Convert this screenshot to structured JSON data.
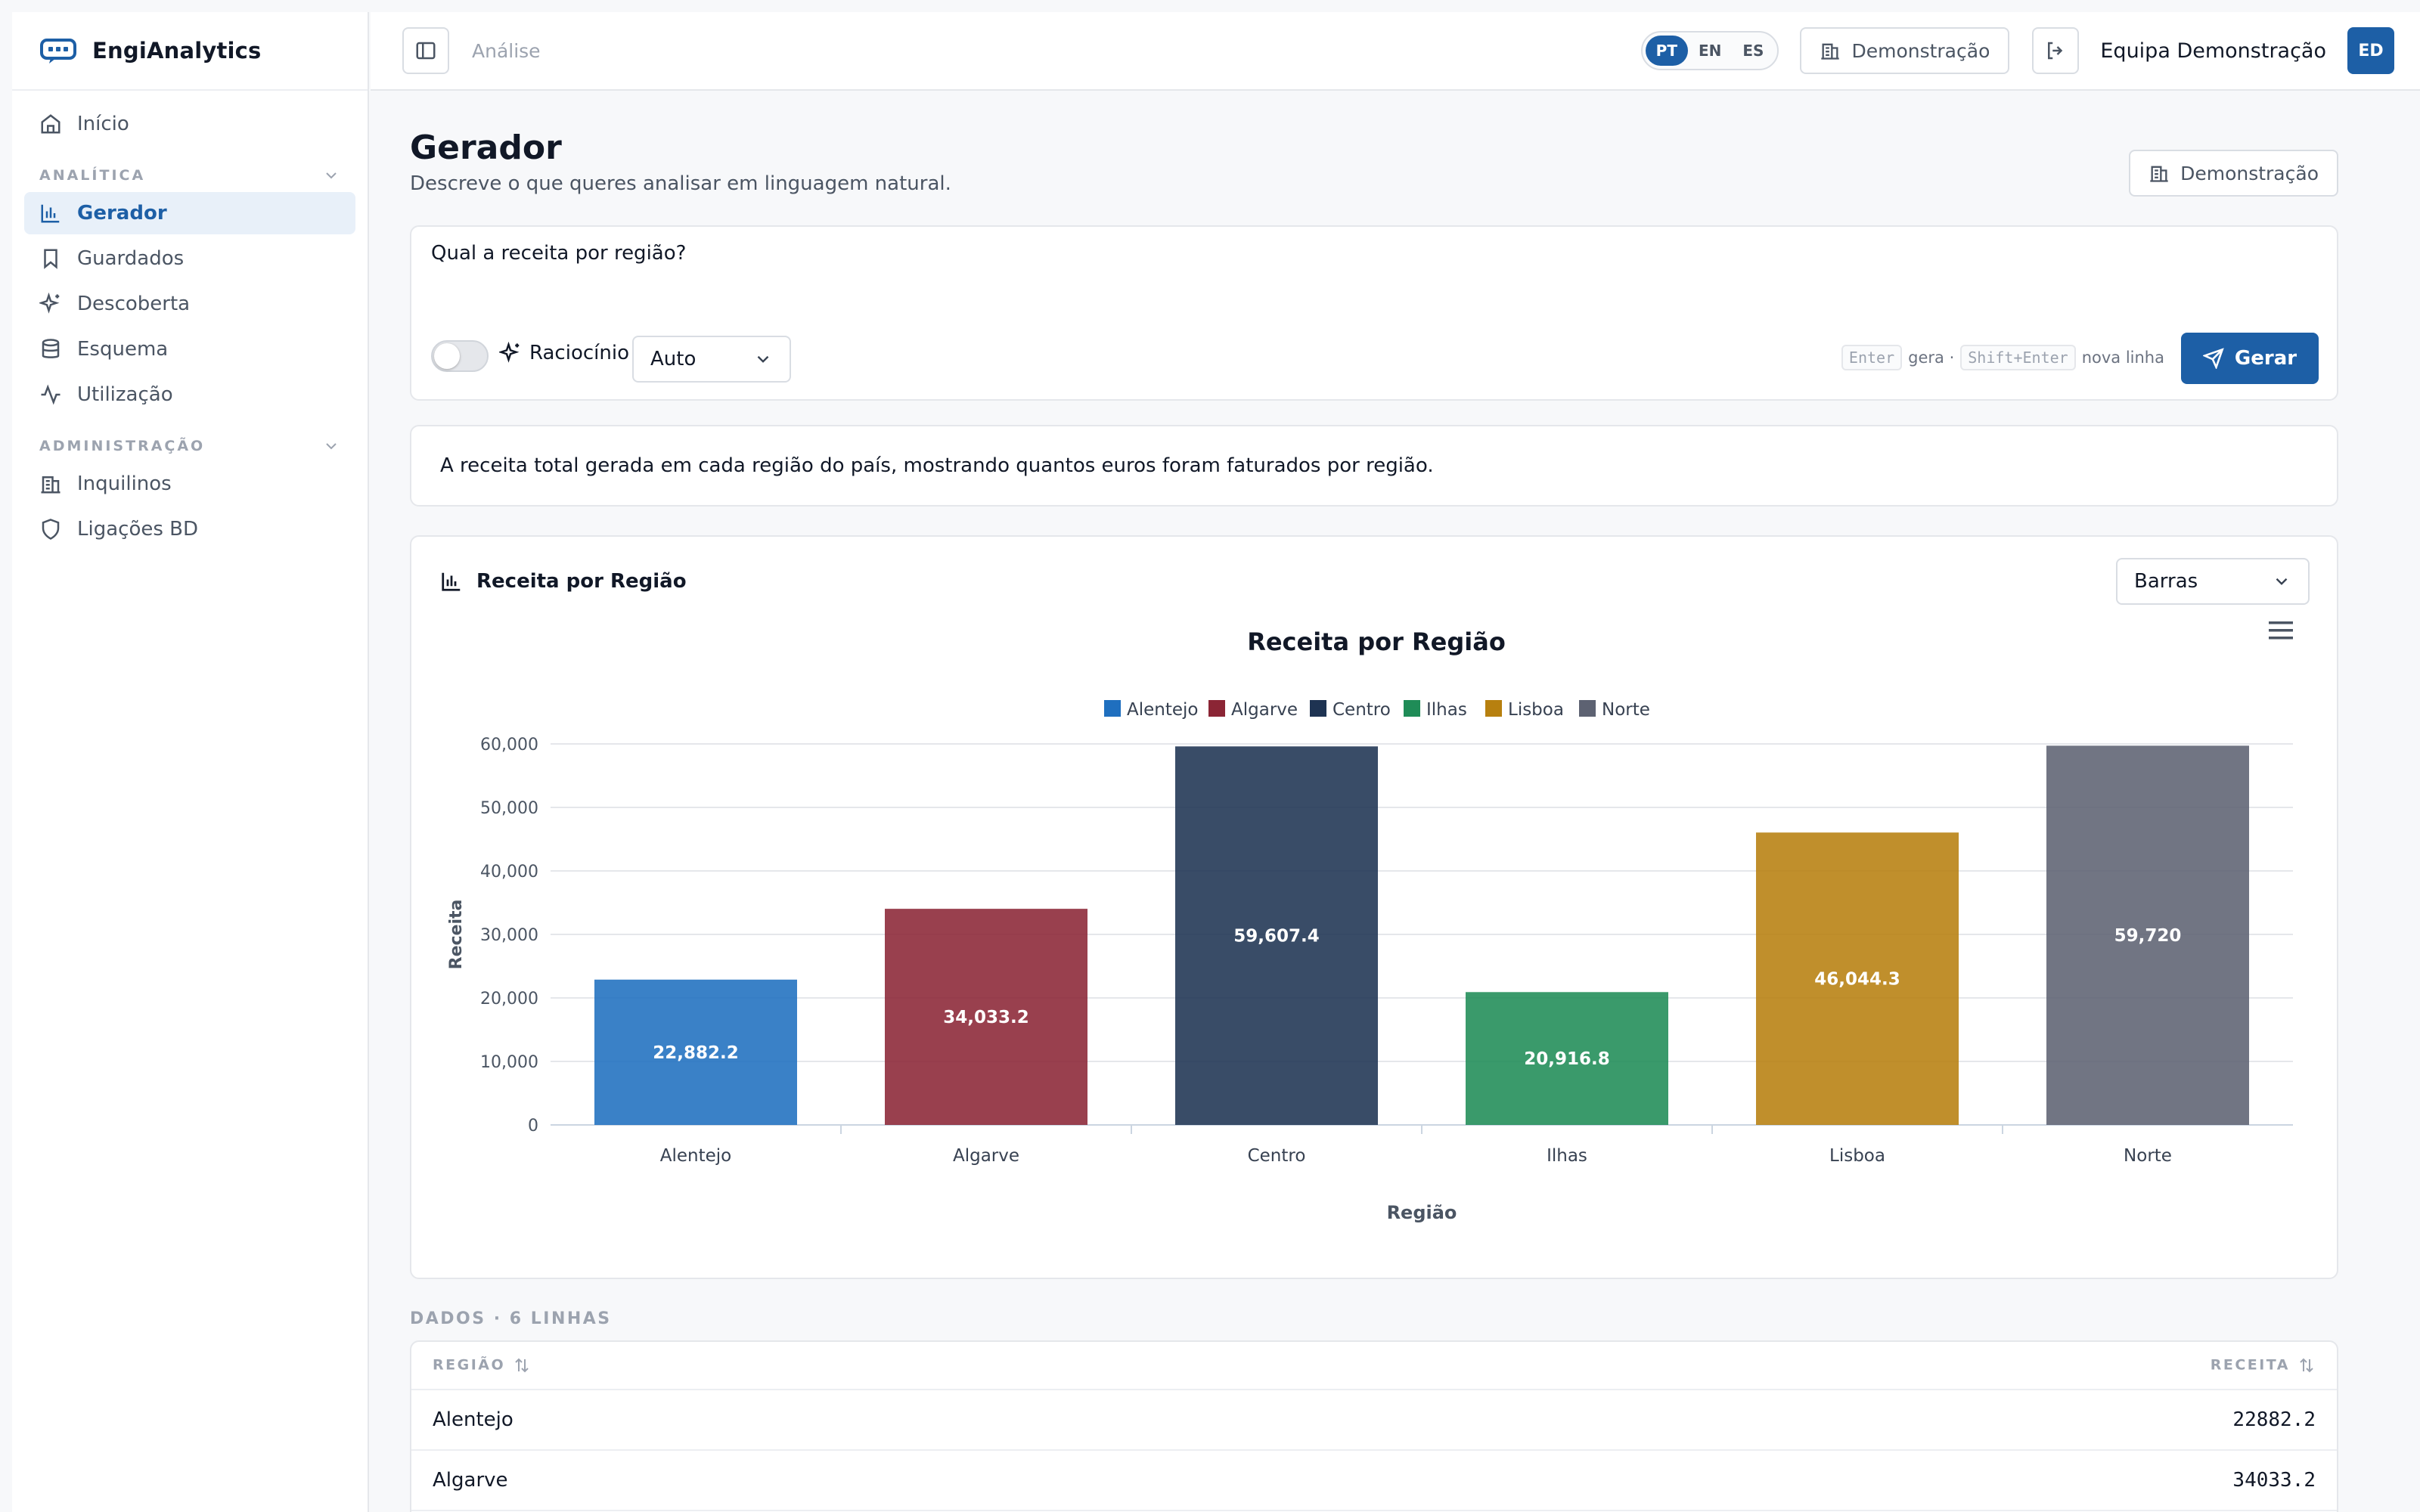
{
  "app": {
    "name": "EngiAnalytics"
  },
  "sidebar": {
    "home": "Início",
    "sections": [
      {
        "label": "ANALÍTICA",
        "items": [
          "Gerador",
          "Guardados",
          "Descoberta",
          "Esquema",
          "Utilização"
        ]
      },
      {
        "label": "ADMINISTRAÇÃO",
        "items": [
          "Inquilinos",
          "Ligações BD"
        ]
      }
    ],
    "active": "Gerador"
  },
  "header": {
    "breadcrumb": "Análise",
    "languages": [
      "PT",
      "EN",
      "ES"
    ],
    "selected_language": "PT",
    "demo_label": "Demonstração",
    "user_name": "Equipa Demonstração",
    "user_initials": "ED"
  },
  "page": {
    "title": "Gerador",
    "subtitle": "Descreve o que queres analisar em linguagem natural.",
    "demo_label": "Demonstração"
  },
  "query": {
    "text": "Qual a receita por região?",
    "reasoning_label": "Raciocínio",
    "reasoning_on": false,
    "model_select": "Auto",
    "hint_key1": "Enter",
    "hint_text1": "gera ·",
    "hint_key2": "Shift+Enter",
    "hint_text2": "nova linha",
    "generate_label": "Gerar"
  },
  "summary": "A receita total gerada em cada região do país, mostrando quantos euros foram faturados por região.",
  "chart_panel": {
    "heading": "Receita por Região",
    "type_select": "Barras"
  },
  "chart_data": {
    "type": "bar",
    "title": "Receita por Região",
    "xlabel": "Região",
    "ylabel": "Receita",
    "categories": [
      "Alentejo",
      "Algarve",
      "Centro",
      "Ilhas",
      "Lisboa",
      "Norte"
    ],
    "values": [
      22882.2,
      34033.2,
      59607.4,
      20916.8,
      46044.3,
      59720
    ],
    "value_labels": [
      "22,882.2",
      "34,033.2",
      "59,607.4",
      "20,916.8",
      "46,044.3",
      "59,720"
    ],
    "colors": [
      "#1f6fbf",
      "#8b2535",
      "#1e3352",
      "#1f8c57",
      "#b7800f",
      "#5d6272"
    ],
    "legend": [
      "Alentejo",
      "Algarve",
      "Centro",
      "Ilhas",
      "Lisboa",
      "Norte"
    ],
    "legend_position": "top-center",
    "ylim": [
      0,
      60000
    ],
    "yticks": [
      0,
      10000,
      20000,
      30000,
      40000,
      50000,
      60000
    ],
    "ytick_labels": [
      "0",
      "10,000",
      "20,000",
      "30,000",
      "40,000",
      "50,000",
      "60,000"
    ],
    "grid": true
  },
  "data_table": {
    "heading": "DADOS · 6 LINHAS",
    "columns": [
      "REGIÃO",
      "RECEITA"
    ],
    "rows": [
      [
        "Alentejo",
        "22882.2"
      ],
      [
        "Algarve",
        "34033.2"
      ]
    ]
  }
}
